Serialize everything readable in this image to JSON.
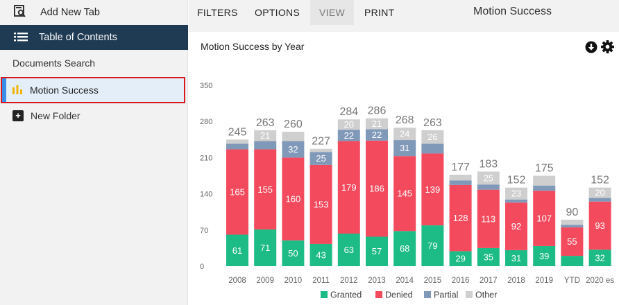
{
  "sidebar": {
    "add_tab": "Add New Tab",
    "toc": "Table of Contents",
    "docs_search": "Documents Search",
    "motion_success": "Motion Success",
    "new_folder": "New Folder",
    "icons": [
      "search-document-icon",
      "list-icon",
      "bar-chart-icon",
      "plus-box-icon"
    ]
  },
  "toolbar": {
    "filters": "FILTERS",
    "options": "OPTIONS",
    "view": "VIEW",
    "print": "PRINT",
    "title": "Motion Success"
  },
  "panel": {
    "title": "Motion Success by Year",
    "icons": [
      "download-icon",
      "gear-icon"
    ]
  },
  "colors": {
    "Granted": "#1dbb86",
    "Denied": "#f44a5e",
    "Partial": "#8099b8",
    "Other": "#cfcfcf",
    "sidebar_active": "#1f3a53",
    "selection_outline": "#d9191e"
  },
  "chart_data": {
    "type": "bar",
    "stacked": true,
    "title": "Motion Success by Year",
    "categories": [
      "2008",
      "2009",
      "2010",
      "2011",
      "2012",
      "2013",
      "2014",
      "2015",
      "2016",
      "2017",
      "2018",
      "2019",
      "YTD",
      "2020 es"
    ],
    "series": [
      {
        "name": "Granted",
        "values": [
          61,
          71,
          50,
          43,
          63,
          57,
          68,
          79,
          29,
          35,
          31,
          39,
          20,
          32
        ],
        "labels": [
          "61",
          "71",
          "50",
          "43",
          "63",
          "57",
          "68",
          "79",
          "29",
          "35",
          "31",
          "39",
          "",
          "32"
        ]
      },
      {
        "name": "Denied",
        "values": [
          165,
          155,
          160,
          153,
          179,
          186,
          145,
          139,
          128,
          113,
          92,
          107,
          55,
          93
        ],
        "labels": [
          "165",
          "155",
          "160",
          "153",
          "179",
          "186",
          "145",
          "139",
          "128",
          "113",
          "92",
          "107",
          "55",
          "93"
        ]
      },
      {
        "name": "Partial",
        "values": [
          11,
          16,
          32,
          25,
          22,
          22,
          31,
          19,
          9,
          10,
          6,
          10,
          5,
          7
        ],
        "labels": [
          "",
          "",
          "32",
          "25",
          "22",
          "22",
          "31",
          "",
          "",
          "",
          "",
          "",
          "",
          ""
        ]
      },
      {
        "name": "Other",
        "values": [
          8,
          21,
          18,
          6,
          20,
          21,
          24,
          26,
          11,
          25,
          23,
          19,
          10,
          20
        ],
        "labels": [
          "",
          "21",
          "",
          "",
          "20",
          "21",
          "24",
          "26",
          "",
          "25",
          "23",
          "",
          "",
          "20"
        ]
      }
    ],
    "totals": [
      "245",
      "263",
      "260",
      "227",
      "284",
      "286",
      "268",
      "263",
      "177",
      "183",
      "152",
      "175",
      "90",
      "152"
    ],
    "y_ticks": [
      "0",
      "70",
      "140",
      "210",
      "280",
      "350"
    ],
    "ylim": [
      0,
      350
    ],
    "legend_position": "bottom"
  }
}
